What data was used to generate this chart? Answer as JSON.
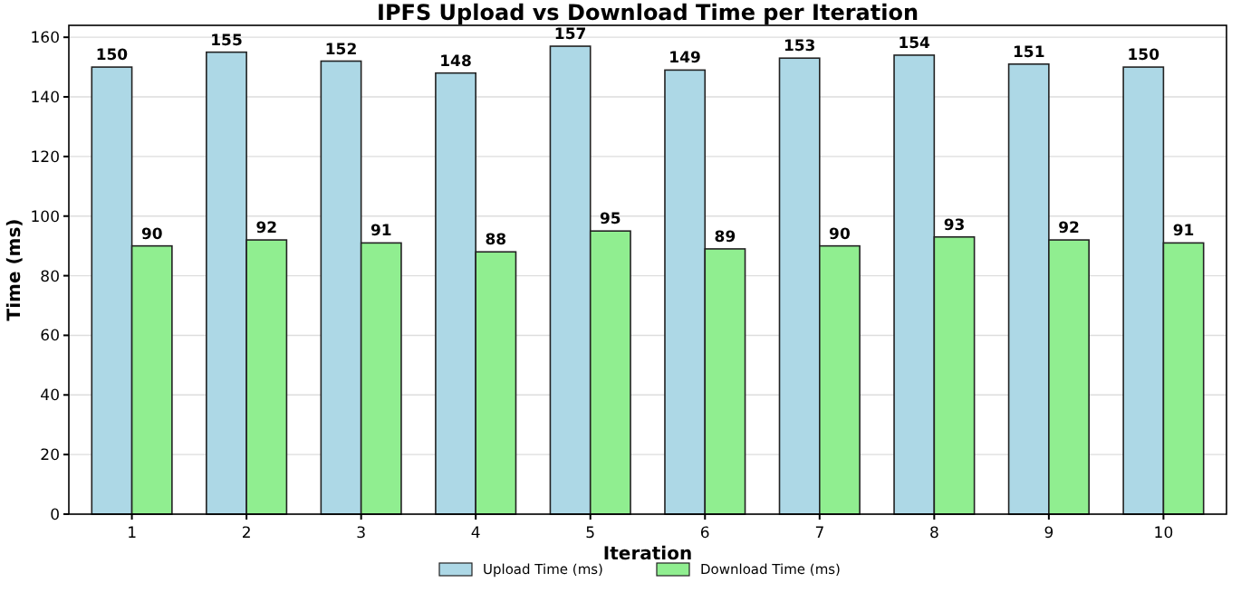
{
  "chart_data": {
    "type": "bar",
    "title": "IPFS Upload vs Download Time per Iteration",
    "xlabel": "Iteration",
    "ylabel": "Time (ms)",
    "categories": [
      "1",
      "2",
      "3",
      "4",
      "5",
      "6",
      "7",
      "8",
      "9",
      "10"
    ],
    "series": [
      {
        "name": "Upload Time (ms)",
        "color": "#add8e6",
        "values": [
          150,
          155,
          152,
          148,
          157,
          149,
          153,
          154,
          151,
          150
        ]
      },
      {
        "name": "Download Time (ms)",
        "color": "#90ee90",
        "values": [
          90,
          92,
          91,
          88,
          95,
          89,
          90,
          93,
          92,
          91
        ]
      }
    ],
    "ylim": [
      0,
      164
    ],
    "yticks": [
      0,
      20,
      40,
      60,
      80,
      100,
      120,
      140,
      160
    ],
    "grid": "y",
    "legend": "bottom",
    "data_labels": true
  }
}
